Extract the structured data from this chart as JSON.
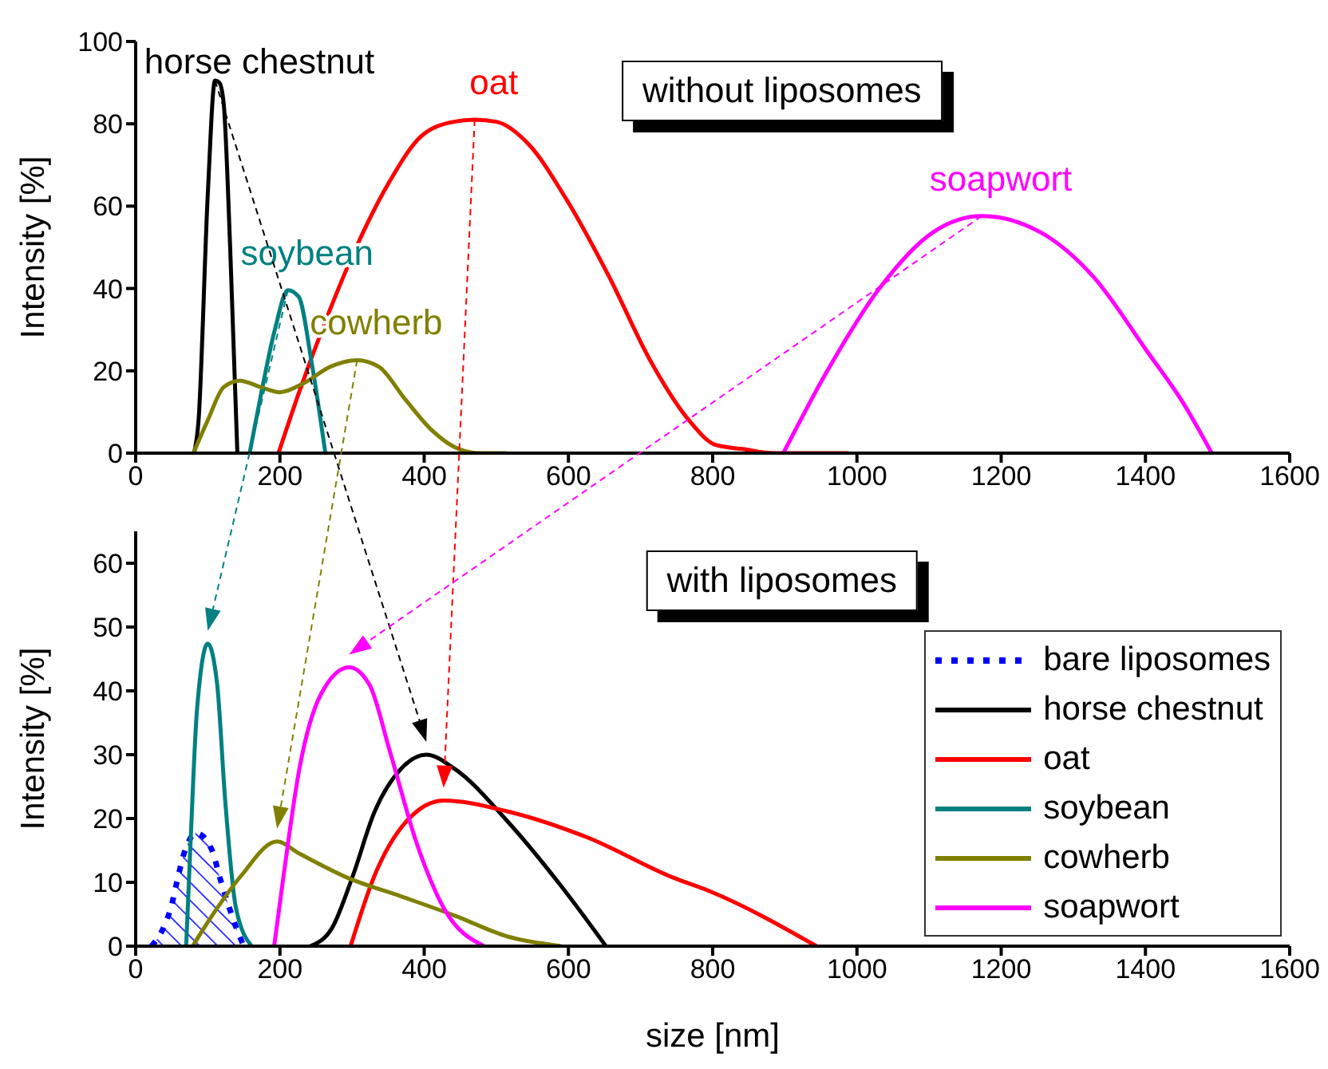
{
  "chart_data": [
    {
      "type": "line",
      "title": "without liposomes",
      "ylabel": "Intensity [%]",
      "xlim": [
        0,
        1600
      ],
      "xticks": [
        0,
        200,
        400,
        600,
        800,
        1000,
        1200,
        1400,
        1600
      ],
      "ylim": [
        0,
        100
      ],
      "yticks": [
        0,
        20,
        40,
        60,
        80,
        100
      ],
      "legend": false,
      "series": [
        {
          "name": "horse chestnut",
          "color": "#000000",
          "x": [
            81,
            87,
            100,
            110,
            116,
            122,
            131,
            141
          ],
          "values": [
            0,
            7.5,
            63,
            90.5,
            90,
            85,
            50,
            0
          ]
        },
        {
          "name": "oat",
          "color": "#ff0000",
          "x": [
            198,
            226,
            263,
            307,
            352,
            396,
            441,
            470,
            500,
            545,
            596,
            656,
            715,
            767,
            804,
            841,
            885,
            988
          ],
          "values": [
            0,
            14.5,
            32,
            50.5,
            66,
            77,
            80.5,
            81,
            80.5,
            75,
            62,
            43,
            22,
            8,
            2,
            1,
            0,
            0
          ]
        },
        {
          "name": "soybean",
          "color": "#008080",
          "x": [
            158,
            174,
            193,
            211,
            226,
            244,
            263
          ],
          "values": [
            0,
            14.5,
            30,
            39.6,
            38,
            22,
            0
          ]
        },
        {
          "name": "cowherb",
          "color": "#808000",
          "x": [
            80,
            100,
            122,
            144,
            174,
            200,
            233,
            270,
            307,
            337,
            374,
            411,
            448,
            478,
            515
          ],
          "values": [
            0,
            8,
            16,
            17.6,
            16,
            14.8,
            17,
            21,
            22.6,
            21,
            13,
            5.5,
            1,
            0,
            0
          ]
        },
        {
          "name": "soapwort",
          "color": "#ff00ff",
          "x": [
            898,
            958,
            1032,
            1106,
            1173,
            1254,
            1328,
            1402,
            1453,
            1492
          ],
          "values": [
            0,
            19.7,
            40.2,
            53.7,
            57.6,
            53.7,
            42.8,
            24.8,
            12,
            0
          ]
        }
      ]
    },
    {
      "type": "line",
      "title": "with liposomes",
      "xlabel": "size [nm]",
      "ylabel": "Intensity [%]",
      "xlim": [
        0,
        1600
      ],
      "xticks": [
        0,
        200,
        400,
        600,
        800,
        1000,
        1200,
        1400,
        1600
      ],
      "ylim": [
        0,
        65
      ],
      "yticks": [
        0,
        10,
        20,
        30,
        40,
        50,
        60
      ],
      "legend": "right",
      "series": [
        {
          "name": "bare liposomes",
          "type": "area",
          "line_style": "dotted",
          "color": "#0000ff",
          "x": [
            22,
            39,
            50,
            57,
            67,
            84,
            106,
            116,
            127,
            139,
            150
          ],
          "values": [
            0,
            3,
            6.5,
            10,
            14.5,
            17.7,
            15,
            11,
            7,
            3,
            0
          ]
        },
        {
          "name": "horse chestnut",
          "color": "#000000",
          "x": [
            242,
            272,
            301,
            331,
            368,
            403,
            442,
            516,
            590,
            652
          ],
          "values": [
            0,
            2.8,
            11,
            21,
            27.8,
            30,
            27.8,
            19.5,
            9.4,
            0
          ]
        },
        {
          "name": "oat",
          "color": "#ff0000",
          "x": [
            298,
            331,
            375,
            427,
            516,
            627,
            746,
            796,
            944
          ],
          "values": [
            0,
            11,
            19.5,
            22.8,
            21.1,
            17,
            10.7,
            8.6,
            0
          ]
        },
        {
          "name": "soybean",
          "color": "#008080",
          "x": [
            70,
            76,
            85,
            100,
            113,
            124,
            139,
            161
          ],
          "values": [
            0,
            16,
            37,
            47.4,
            41,
            23,
            6,
            0
          ]
        },
        {
          "name": "cowherb",
          "color": "#808000",
          "x": [
            79,
            109,
            146,
            196,
            227,
            294,
            368,
            442,
            516,
            590
          ],
          "values": [
            0,
            5.3,
            11,
            16.4,
            14.5,
            10.7,
            7.8,
            4.8,
            1.5,
            0
          ]
        },
        {
          "name": "soapwort",
          "color": "#ff00ff",
          "x": [
            192,
            205,
            227,
            257,
            296,
            324,
            353,
            390,
            427,
            483
          ],
          "values": [
            0,
            11,
            27.8,
            39.5,
            43.7,
            41,
            30.3,
            16,
            6,
            0
          ]
        }
      ]
    }
  ]
}
